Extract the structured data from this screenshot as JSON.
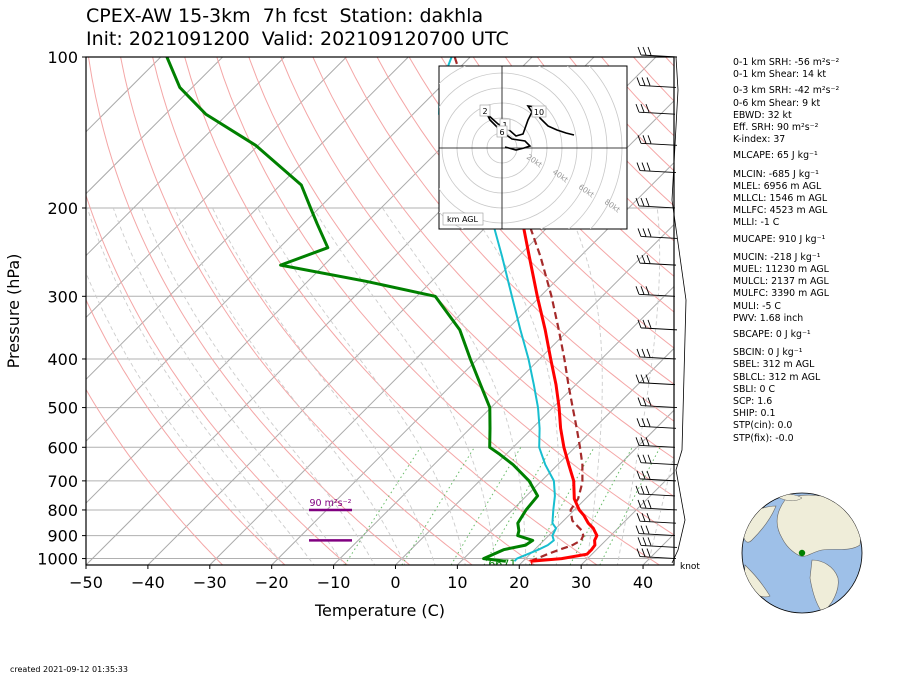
{
  "title": {
    "line1": "CPEX-AW 15-3km  7h fcst  Station: dakhla",
    "line2": "Init: 2021091200  Valid: 202109120700 UTC"
  },
  "footer": "created 2021-09-12 01:35:33",
  "indices": [
    {
      "text": "0-1 km SRH: -56 m²s⁻²"
    },
    {
      "text": "0-1 km Shear: 14 kt"
    },
    {
      "text": "0-3 km SRH: -42 m²s⁻²"
    },
    {
      "text": "0-6 km Shear: 9 kt"
    },
    {
      "text": "EBWD: 32 kt"
    },
    {
      "text": "Eff. SRH: 90 m²s⁻²"
    },
    {
      "text": "K-index: 37"
    },
    {
      "text": "MLCAPE: 65 J kg⁻¹"
    },
    {
      "text": "MLCIN: -685 J kg⁻¹"
    },
    {
      "text": "MLEL: 6956 m AGL"
    },
    {
      "text": "MLLCL: 1546 m AGL"
    },
    {
      "text": "MLLFC: 4523 m AGL"
    },
    {
      "text": "MLLI: -1 C"
    },
    {
      "text": "MUCAPE: 910 J kg⁻¹"
    },
    {
      "text": "MUCIN: -218 J kg⁻¹"
    },
    {
      "text": "MUEL: 11230 m AGL"
    },
    {
      "text": "MULCL: 2137 m AGL"
    },
    {
      "text": "MULFC: 3390 m AGL"
    },
    {
      "text": "MULI: -5 C"
    },
    {
      "text": "PWV: 1.68 inch"
    },
    {
      "text": "SBCAPE: 0 J kg⁻¹"
    },
    {
      "text": "SBCIN: 0 J kg⁻¹"
    },
    {
      "text": "SBEL: 312 m AGL"
    },
    {
      "text": "SBLCL: 312 m AGL"
    },
    {
      "text": "SBLI: 0 C"
    },
    {
      "text": "SCP: 1.6"
    },
    {
      "text": "SHIP: 0.1"
    },
    {
      "text": "STP(cin): 0.0"
    },
    {
      "text": "STP(fix): -0.0"
    }
  ],
  "colors": {
    "temperature": "#ff0000",
    "dewpoint": "#008000",
    "wetbulb": "#17becf",
    "parcel": "#a52a2a",
    "srh_bar": "#800080",
    "isotherm": "#aaaaaa",
    "dry_adiabat": "#f4a6a6",
    "mixing_ratio": "#66bb66"
  },
  "chart_data": {
    "type": "line",
    "subtype": "skew-T log-p",
    "xlabel": "Temperature (C)",
    "ylabel": "Pressure (hPa)",
    "xlim": [
      -50,
      45
    ],
    "ylim": [
      1030,
      100
    ],
    "x_ticks": [
      "−50",
      "−40",
      "−30",
      "−20",
      "−10",
      "0",
      "10",
      "20",
      "30",
      "40"
    ],
    "x_tick_values": [
      -50,
      -40,
      -30,
      -20,
      -10,
      0,
      10,
      20,
      30,
      40
    ],
    "y_ticks": [
      "100",
      "200",
      "300",
      "400",
      "500",
      "600",
      "700",
      "800",
      "900",
      "1000"
    ],
    "y_tick_values": [
      100,
      200,
      300,
      400,
      500,
      600,
      700,
      800,
      900,
      1000
    ],
    "grid": true,
    "series": [
      {
        "key": "temperature",
        "values": [
          [
            1012,
            21.2
          ],
          [
            1000,
            25.8
          ],
          [
            980,
            29.2
          ],
          [
            960,
            29.2
          ],
          [
            940,
            29.0
          ],
          [
            920,
            28.2
          ],
          [
            900,
            27.8
          ],
          [
            870,
            26.0
          ],
          [
            850,
            24.4
          ],
          [
            820,
            22.4
          ],
          [
            800,
            20.8
          ],
          [
            760,
            18.2
          ],
          [
            700,
            15.2
          ],
          [
            650,
            11.8
          ],
          [
            600,
            8.2
          ],
          [
            550,
            4.6
          ],
          [
            500,
            1.0
          ],
          [
            450,
            -3.2
          ],
          [
            400,
            -8.2
          ],
          [
            350,
            -13.8
          ],
          [
            300,
            -20.5
          ],
          [
            250,
            -28.2
          ],
          [
            200,
            -37.6
          ],
          [
            170,
            -44.0
          ]
        ]
      },
      {
        "key": "dewpoint",
        "values": [
          [
            1012,
            17.2
          ],
          [
            1000,
            13.2
          ],
          [
            960,
            15.0
          ],
          [
            940,
            17.8
          ],
          [
            920,
            18.2
          ],
          [
            900,
            15.0
          ],
          [
            880,
            14.4
          ],
          [
            850,
            13.0
          ],
          [
            800,
            12.2
          ],
          [
            750,
            11.8
          ],
          [
            700,
            8.0
          ],
          [
            650,
            2.8
          ],
          [
            620,
            -1.0
          ],
          [
            600,
            -3.8
          ],
          [
            550,
            -6.8
          ],
          [
            500,
            -10.2
          ],
          [
            450,
            -15.4
          ],
          [
            400,
            -21.2
          ],
          [
            350,
            -27.6
          ],
          [
            300,
            -37.0
          ],
          [
            280,
            -50.6
          ],
          [
            260,
            -67.0
          ],
          [
            240,
            -62.2
          ],
          [
            215,
            -67.8
          ],
          [
            200,
            -71.4
          ],
          [
            180,
            -76.6
          ],
          [
            150,
            -90.4
          ],
          [
            130,
            -103.5
          ],
          [
            115,
            -112.0
          ],
          [
            100,
            -119.0
          ]
        ]
      },
      {
        "key": "wetbulb",
        "values": [
          [
            1012,
            18.6
          ],
          [
            1000,
            18.6
          ],
          [
            960,
            20.6
          ],
          [
            940,
            21.4
          ],
          [
            920,
            21.6
          ],
          [
            900,
            20.6
          ],
          [
            870,
            20.0
          ],
          [
            850,
            18.6
          ],
          [
            800,
            16.6
          ],
          [
            750,
            14.6
          ],
          [
            700,
            12.0
          ],
          [
            650,
            8.0
          ],
          [
            600,
            4.2
          ],
          [
            550,
            1.2
          ],
          [
            500,
            -2.4
          ],
          [
            450,
            -6.8
          ],
          [
            400,
            -11.8
          ],
          [
            350,
            -17.8
          ],
          [
            300,
            -24.6
          ],
          [
            250,
            -32.6
          ],
          [
            200,
            -42.6
          ],
          [
            170,
            -50.4
          ],
          [
            150,
            -58.0
          ],
          [
            130,
            -65.8
          ],
          [
            115,
            -70.0
          ],
          [
            100,
            -73.0
          ]
        ]
      },
      {
        "key": "parcel",
        "values": [
          [
            1012,
            21.2
          ],
          [
            980,
            22.8
          ],
          [
            960,
            24.0
          ],
          [
            940,
            25.4
          ],
          [
            920,
            26.0
          ],
          [
            900,
            25.6
          ],
          [
            880,
            24.6
          ],
          [
            860,
            23.0
          ],
          [
            840,
            21.4
          ],
          [
            820,
            20.4
          ],
          [
            800,
            19.4
          ],
          [
            760,
            18.8
          ],
          [
            720,
            17.4
          ],
          [
            700,
            16.6
          ],
          [
            650,
            14.0
          ],
          [
            600,
            10.8
          ],
          [
            550,
            7.2
          ],
          [
            500,
            3.2
          ],
          [
            450,
            -1.2
          ],
          [
            400,
            -6.0
          ],
          [
            350,
            -11.6
          ],
          [
            300,
            -18.2
          ],
          [
            250,
            -26.4
          ],
          [
            200,
            -37.0
          ],
          [
            170,
            -45.2
          ],
          [
            150,
            -52.0
          ],
          [
            130,
            -59.8
          ],
          [
            115,
            -66.0
          ],
          [
            100,
            -72.5
          ]
        ]
      }
    ],
    "surface_labels": [
      {
        "text": "6671",
        "color": "#008000",
        "t": 17.2,
        "p": 1028
      },
      {
        "text": "1",
        "color": "#ff0000",
        "t": 21.9,
        "p": 1028
      }
    ],
    "srh_bars": [
      {
        "label": "90 m²s⁻²",
        "p_top": 800,
        "p_bottom": 920
      }
    ],
    "wind_unit_label": "knot",
    "hodograph": {
      "rings": [
        "20kt",
        "40kt",
        "60kt",
        "80kt"
      ],
      "height_labels": [
        "2",
        "1",
        "6",
        "10"
      ],
      "agl_label": "km AGL"
    }
  }
}
